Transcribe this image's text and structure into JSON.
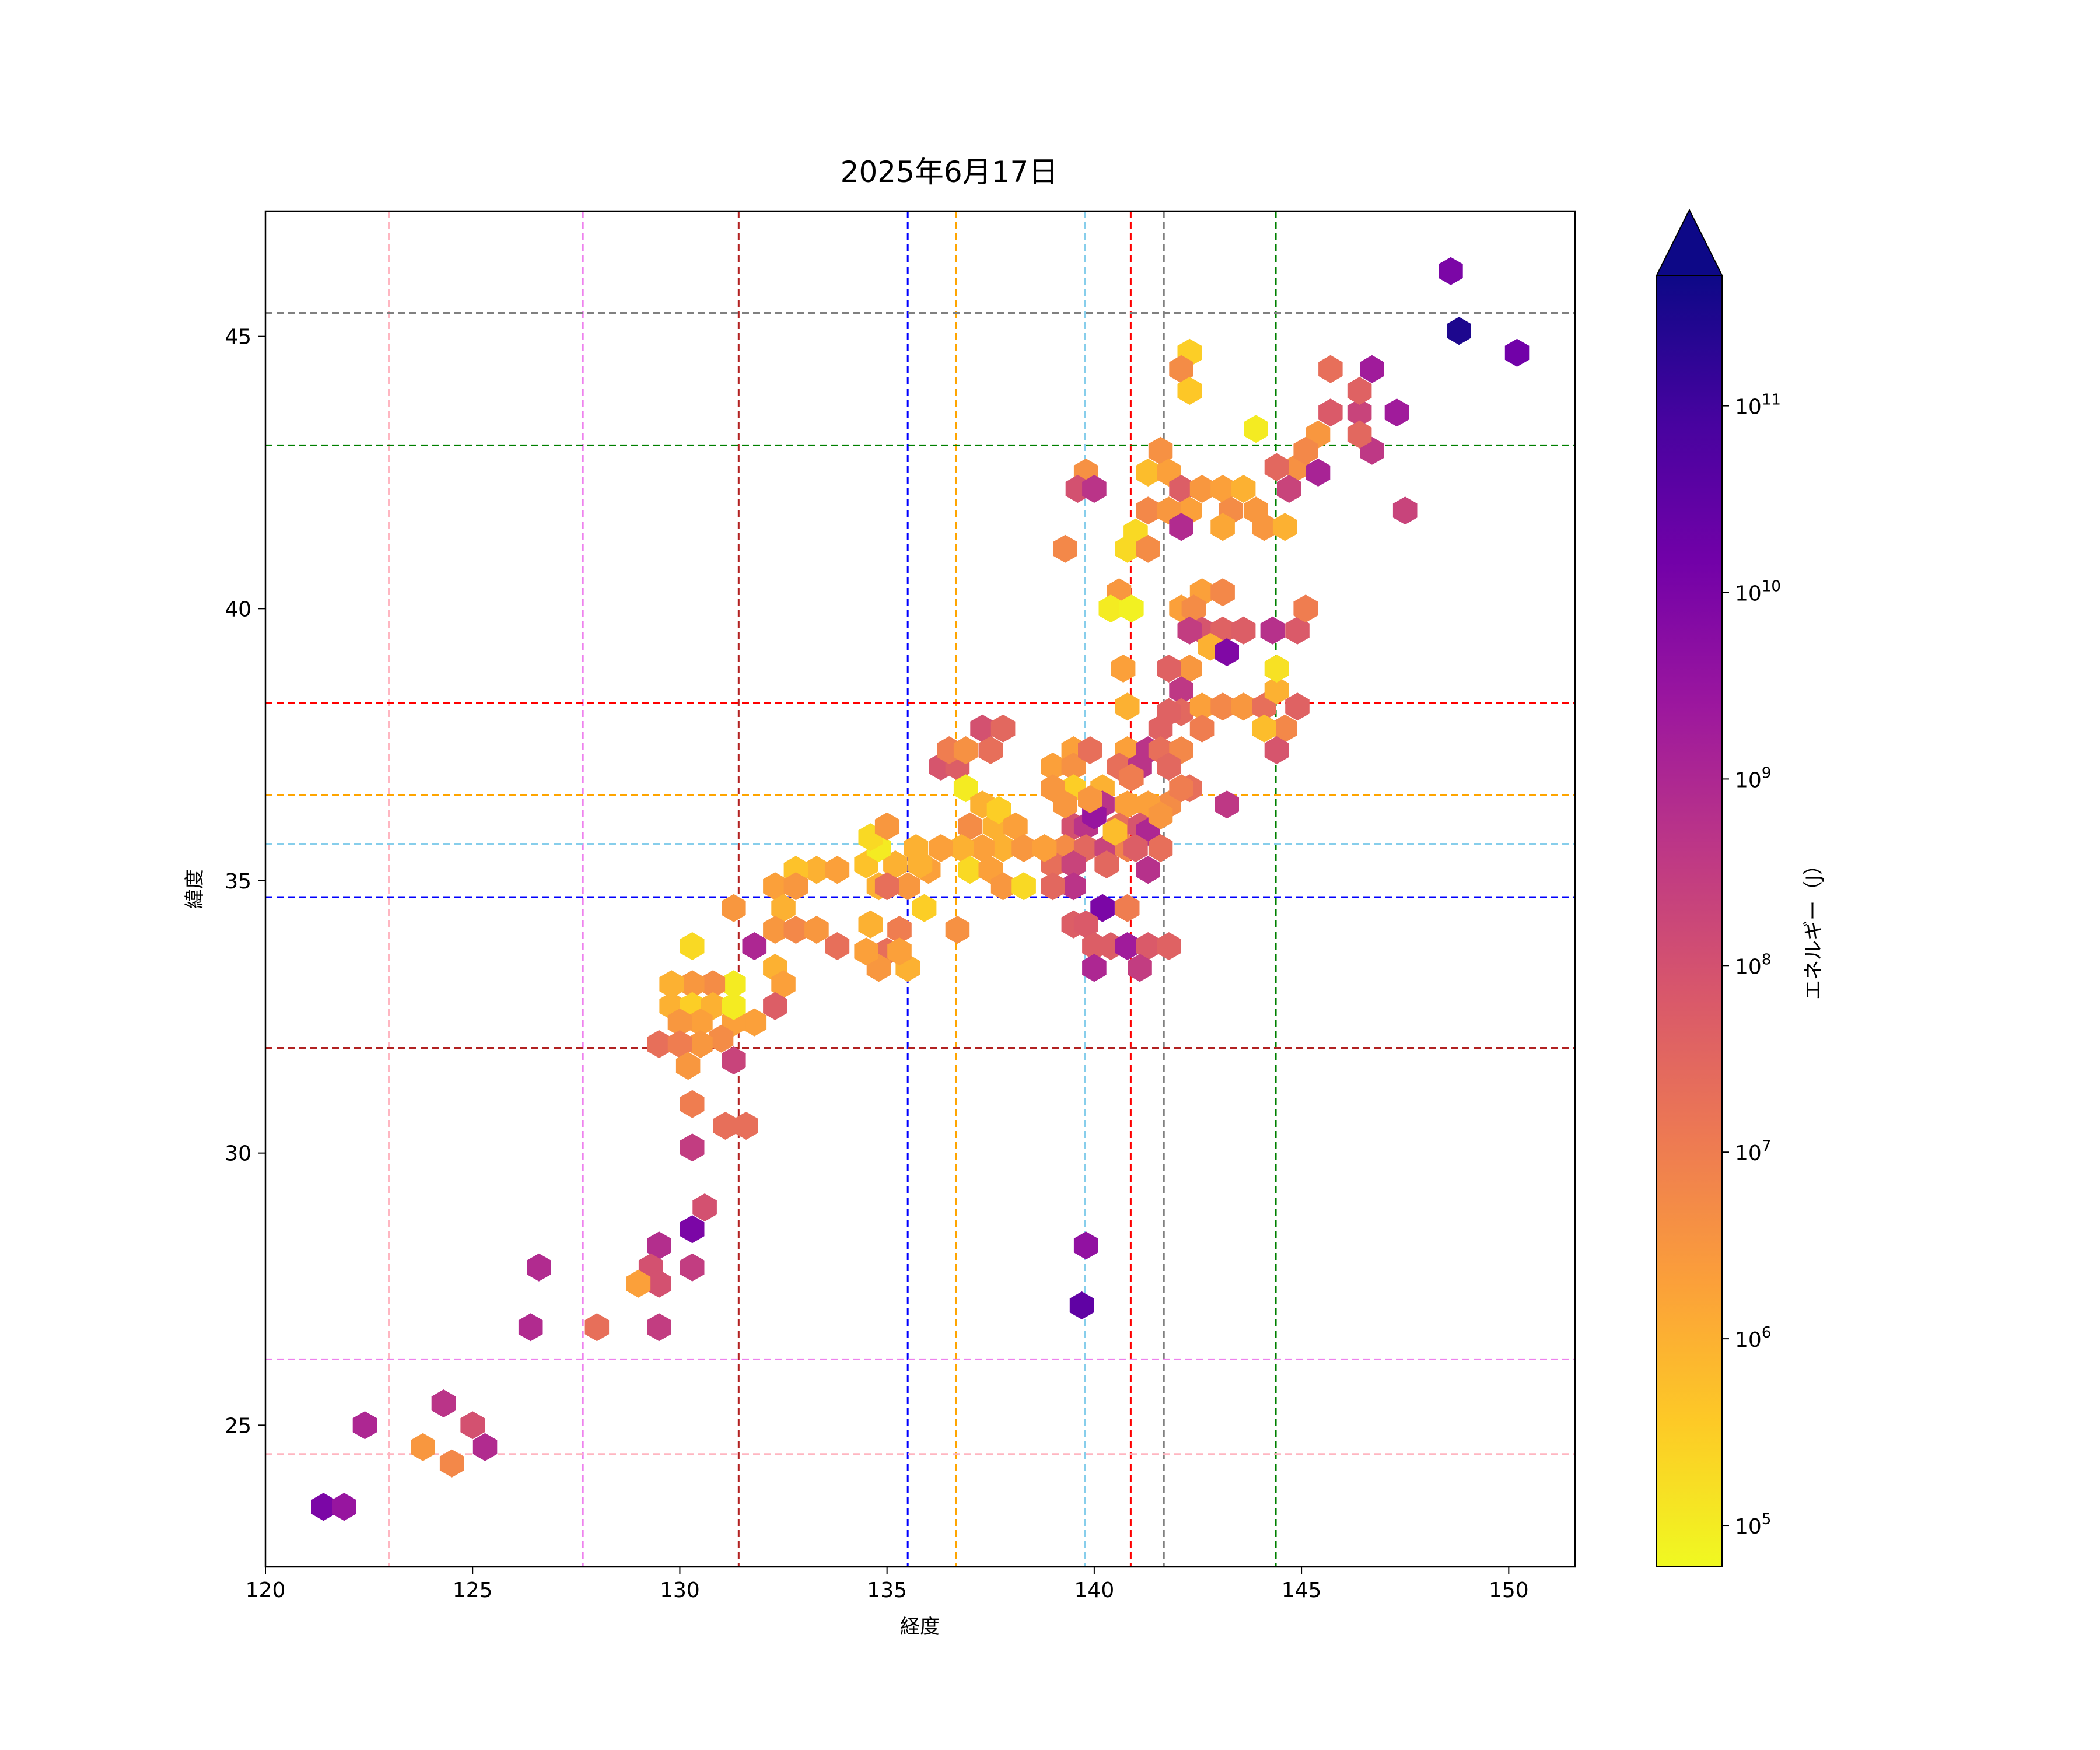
{
  "chart_data": {
    "type": "hexbin",
    "title": "2025年6月17日",
    "xlabel": "経度",
    "ylabel": "緯度",
    "xlim": [
      120,
      151.6
    ],
    "ylim": [
      22.4,
      47.3
    ],
    "xticks": [
      120,
      125,
      130,
      135,
      140,
      145,
      150
    ],
    "yticks": [
      25,
      30,
      35,
      40,
      45
    ],
    "grid": false,
    "colorbar": {
      "label": "エネルギー（J）",
      "scale": "log",
      "colormap": "plasma_r",
      "range": [
        60000,
        500000000000
      ],
      "extend": "max",
      "ticks": [
        {
          "value": 100000,
          "base": "10",
          "exp": "5"
        },
        {
          "value": 1000000,
          "base": "10",
          "exp": "6"
        },
        {
          "value": 10000000,
          "base": "10",
          "exp": "7"
        },
        {
          "value": 100000000,
          "base": "10",
          "exp": "8"
        },
        {
          "value": 1000000000,
          "base": "10",
          "exp": "9"
        },
        {
          "value": 10000000000,
          "base": "10",
          "exp": "10"
        },
        {
          "value": 100000000000,
          "base": "10",
          "exp": "11"
        }
      ]
    },
    "reference_lines": {
      "vertical": [
        {
          "x": 122.99,
          "color": "#ffb6c1"
        },
        {
          "x": 127.66,
          "color": "#ee82ee"
        },
        {
          "x": 131.42,
          "color": "#b22222"
        },
        {
          "x": 135.5,
          "color": "#0000ff"
        },
        {
          "x": 136.67,
          "color": "#ffa500"
        },
        {
          "x": 139.77,
          "color": "#87ceeb"
        },
        {
          "x": 140.88,
          "color": "#ff0000"
        },
        {
          "x": 141.68,
          "color": "#808080"
        },
        {
          "x": 144.38,
          "color": "#008000"
        }
      ],
      "horizontal": [
        {
          "y": 45.43,
          "color": "#808080"
        },
        {
          "y": 43.0,
          "color": "#008000"
        },
        {
          "y": 38.27,
          "color": "#ff0000"
        },
        {
          "y": 36.58,
          "color": "#ffa500"
        },
        {
          "y": 35.68,
          "color": "#87ceeb"
        },
        {
          "y": 34.7,
          "color": "#0000ff"
        },
        {
          "y": 31.93,
          "color": "#b22222"
        },
        {
          "y": 26.21,
          "color": "#ee82ee"
        },
        {
          "y": 24.47,
          "color": "#ffb6c1"
        }
      ]
    },
    "cells": [
      [
        148.6,
        46.2,
        10000000000.0
      ],
      [
        148.8,
        45.1,
        300000000000.0
      ],
      [
        150.2,
        44.7,
        15000000000.0
      ],
      [
        146.7,
        44.4,
        2000000000.0
      ],
      [
        145.7,
        44.4,
        20000000.0
      ],
      [
        147.3,
        43.6,
        2000000000.0
      ],
      [
        146.4,
        43.6,
        200000000.0
      ],
      [
        145.7,
        43.6,
        60000000.0
      ],
      [
        146.4,
        44.0,
        40000000.0
      ],
      [
        146.7,
        42.9,
        400000000.0
      ],
      [
        145.4,
        43.2,
        3000000.0
      ],
      [
        146.4,
        43.2,
        30000000.0
      ],
      [
        147.5,
        41.8,
        200000000.0
      ],
      [
        144.9,
        42.6,
        4000000.0
      ],
      [
        144.4,
        42.6,
        30000000.0
      ],
      [
        145.1,
        42.9,
        6000000.0
      ],
      [
        145.4,
        42.5,
        1300000000.0
      ],
      [
        144.7,
        42.2,
        200000000.0
      ],
      [
        143.9,
        43.3,
        100000.0
      ],
      [
        142.3,
        44.7,
        300000.0
      ],
      [
        142.1,
        44.4,
        5000000.0
      ],
      [
        142.3,
        44.0,
        400000.0
      ],
      [
        141.6,
        42.9,
        4000000.0
      ],
      [
        141.3,
        42.5,
        600000.0
      ],
      [
        141.8,
        42.5,
        2000000.0
      ],
      [
        142.1,
        42.2,
        50000000.0
      ],
      [
        142.6,
        42.2,
        3000000.0
      ],
      [
        143.1,
        42.2,
        2000000.0
      ],
      [
        143.6,
        42.2,
        1000000.0
      ],
      [
        142.3,
        41.8,
        2000000.0
      ],
      [
        141.3,
        41.8,
        6000000.0
      ],
      [
        141.8,
        41.8,
        3000000.0
      ],
      [
        143.3,
        41.8,
        5000000.0
      ],
      [
        143.9,
        41.8,
        3000000.0
      ],
      [
        142.1,
        41.5,
        800000000.0
      ],
      [
        143.1,
        41.5,
        1500000.0
      ],
      [
        144.1,
        41.5,
        3000000.0
      ],
      [
        144.6,
        41.5,
        1000000.0
      ],
      [
        141.0,
        41.4,
        200000.0
      ],
      [
        140.8,
        41.1,
        200000.0
      ],
      [
        141.3,
        41.1,
        5000000.0
      ],
      [
        139.3,
        41.1,
        6000000.0
      ],
      [
        139.8,
        42.5,
        4000000.0
      ],
      [
        139.6,
        42.2,
        100000000.0
      ],
      [
        140.0,
        42.2,
        500000000.0
      ],
      [
        140.6,
        40.3,
        3000000.0
      ],
      [
        140.4,
        40.0,
        100000.0
      ],
      [
        140.9,
        40.0,
        80000.0
      ],
      [
        142.1,
        40.0,
        2000000.0
      ],
      [
        142.6,
        40.3,
        2000000.0
      ],
      [
        143.1,
        40.3,
        6000000.0
      ],
      [
        142.4,
        40.0,
        5000000.0
      ],
      [
        142.6,
        39.6,
        80000000.0
      ],
      [
        142.3,
        39.6,
        300000000.0
      ],
      [
        143.1,
        39.6,
        40000000.0
      ],
      [
        143.6,
        39.6,
        50000000.0
      ],
      [
        142.8,
        39.3,
        1000000.0
      ],
      [
        143.2,
        39.2,
        8000000000.0
      ],
      [
        142.3,
        38.9,
        3000000.0
      ],
      [
        141.8,
        38.9,
        40000000.0
      ],
      [
        140.7,
        38.9,
        2000000.0
      ],
      [
        142.1,
        38.5,
        400000000.0
      ],
      [
        140.8,
        38.2,
        1000000.0
      ],
      [
        142.1,
        38.1,
        30000000.0
      ],
      [
        142.6,
        38.2,
        2000000.0
      ],
      [
        143.1,
        38.2,
        6000000.0
      ],
      [
        143.6,
        38.2,
        3000000.0
      ],
      [
        144.1,
        38.2,
        20000000.0
      ],
      [
        144.4,
        38.5,
        1000000.0
      ],
      [
        144.4,
        38.9,
        150000.0
      ],
      [
        144.3,
        39.6,
        600000000.0
      ],
      [
        144.9,
        39.6,
        60000000.0
      ],
      [
        145.1,
        40.0,
        10000000.0
      ],
      [
        144.9,
        38.2,
        40000000.0
      ],
      [
        144.6,
        37.8,
        6000000.0
      ],
      [
        144.1,
        37.8,
        600000.0
      ],
      [
        144.4,
        37.4,
        80000000.0
      ],
      [
        137.3,
        37.8,
        100000000.0
      ],
      [
        137.8,
        37.8,
        30000000.0
      ],
      [
        136.3,
        37.1,
        80000000.0
      ],
      [
        136.7,
        37.1,
        50000000.0
      ],
      [
        136.5,
        37.4,
        10000000.0
      ],
      [
        136.9,
        37.4,
        4000000.0
      ],
      [
        137.5,
        37.4,
        20000000.0
      ],
      [
        136.9,
        36.7,
        100000.0
      ],
      [
        137.3,
        36.4,
        1000000.0
      ],
      [
        137.6,
        36.0,
        1000000.0
      ],
      [
        137.0,
        36.0,
        5000000.0
      ],
      [
        137.7,
        36.3,
        300000.0
      ],
      [
        138.1,
        36.0,
        2000000.0
      ],
      [
        137.8,
        35.6,
        1000000.0
      ],
      [
        137.3,
        35.6,
        2000000.0
      ],
      [
        136.8,
        35.6,
        1000000.0
      ],
      [
        136.3,
        35.6,
        2000000.0
      ],
      [
        135.7,
        35.6,
        1000000.0
      ],
      [
        135.2,
        35.3,
        1000000.0
      ],
      [
        136.0,
        35.2,
        2000000.0
      ],
      [
        137.0,
        35.2,
        200000.0
      ],
      [
        137.5,
        35.2,
        2000000.0
      ],
      [
        137.8,
        34.9,
        3000000.0
      ],
      [
        138.3,
        34.9,
        200000.0
      ],
      [
        135.9,
        34.5,
        300000.0
      ],
      [
        135.5,
        34.9,
        3000000.0
      ],
      [
        134.8,
        34.9,
        1000000.0
      ],
      [
        134.5,
        35.3,
        500000.0
      ],
      [
        135.0,
        34.9,
        20000000.0
      ],
      [
        135.8,
        35.3,
        1000000.0
      ],
      [
        134.8,
        35.6,
        100000.0
      ],
      [
        134.6,
        35.8,
        200000.0
      ],
      [
        135.0,
        36.0,
        3000000.0
      ],
      [
        136.7,
        34.1,
        4000000.0
      ],
      [
        135.3,
        34.1,
        10000000.0
      ],
      [
        135.0,
        33.7,
        20000000.0
      ],
      [
        134.8,
        33.4,
        3000000.0
      ],
      [
        135.5,
        33.4,
        1000000.0
      ],
      [
        134.5,
        33.7,
        2000000.0
      ],
      [
        135.3,
        33.7,
        2000000.0
      ],
      [
        134.6,
        34.2,
        1000000.0
      ],
      [
        139.5,
        37.4,
        2000000.0
      ],
      [
        139.0,
        37.1,
        2000000.0
      ],
      [
        139.5,
        37.1,
        4000000.0
      ],
      [
        139.9,
        37.4,
        20000000.0
      ],
      [
        139.5,
        36.7,
        300000.0
      ],
      [
        140.2,
        36.7,
        1000000.0
      ],
      [
        139.0,
        36.7,
        3000000.0
      ],
      [
        140.8,
        37.4,
        2000000.0
      ],
      [
        140.6,
        37.1,
        20000000.0
      ],
      [
        141.1,
        37.1,
        500000000.0
      ],
      [
        141.3,
        37.4,
        500000000.0
      ],
      [
        141.6,
        37.8,
        40000000.0
      ],
      [
        141.6,
        37.4,
        20000000.0
      ],
      [
        142.1,
        37.4,
        6000000.0
      ],
      [
        142.3,
        36.7,
        20000000.0
      ],
      [
        141.8,
        36.4,
        5000000.0
      ],
      [
        141.3,
        36.4,
        2000000.0
      ],
      [
        140.8,
        36.4,
        2000000.0
      ],
      [
        140.2,
        36.4,
        500000000.0
      ],
      [
        140.6,
        36.0,
        20000000.0
      ],
      [
        141.1,
        36.0,
        80000000.0
      ],
      [
        141.3,
        35.9,
        1000000000.0
      ],
      [
        139.5,
        36.0,
        100000000.0
      ],
      [
        139.8,
        36.0,
        500000000.0
      ],
      [
        140.0,
        36.2,
        3000000000.0
      ],
      [
        139.3,
        35.6,
        5000000.0
      ],
      [
        139.8,
        35.6,
        30000000.0
      ],
      [
        140.3,
        35.6,
        200000000.0
      ],
      [
        140.8,
        35.6,
        8000000.0
      ],
      [
        139.0,
        35.3,
        20000000.0
      ],
      [
        139.5,
        35.3,
        200000000.0
      ],
      [
        140.3,
        35.3,
        30000000.0
      ],
      [
        141.0,
        35.6,
        50000000.0
      ],
      [
        141.3,
        35.2,
        600000000.0
      ],
      [
        139.5,
        34.9,
        500000000.0
      ],
      [
        139.0,
        34.9,
        30000000.0
      ],
      [
        140.2,
        34.5,
        10000000000.0
      ],
      [
        140.8,
        34.5,
        10000000.0
      ],
      [
        139.5,
        34.2,
        50000000.0
      ],
      [
        139.8,
        34.2,
        60000000.0
      ],
      [
        140.0,
        33.8,
        50000000.0
      ],
      [
        140.4,
        33.8,
        50000000.0
      ],
      [
        140.8,
        33.8,
        2000000000.0
      ],
      [
        141.3,
        33.8,
        60000000.0
      ],
      [
        140.0,
        33.4,
        1000000000.0
      ],
      [
        141.1,
        33.4,
        300000000.0
      ],
      [
        141.8,
        33.8,
        40000000.0
      ],
      [
        142.1,
        36.7,
        10000000.0
      ],
      [
        141.6,
        36.2,
        3000000.0
      ],
      [
        140.9,
        36.9,
        10000000.0
      ],
      [
        141.8,
        38.1,
        40000000.0
      ],
      [
        141.8,
        37.1,
        30000000.0
      ],
      [
        139.9,
        36.5,
        3000000.0
      ],
      [
        142.6,
        37.8,
        10000000.0
      ],
      [
        143.2,
        36.4,
        400000000.0
      ],
      [
        140.5,
        35.9,
        600000.0
      ],
      [
        141.6,
        35.6,
        20000000.0
      ],
      [
        138.3,
        35.6,
        3000000.0
      ],
      [
        138.8,
        35.6,
        2000000.0
      ],
      [
        139.3,
        36.4,
        3000000.0
      ],
      [
        133.3,
        35.2,
        1000000.0
      ],
      [
        132.8,
        35.2,
        500000.0
      ],
      [
        133.8,
        35.2,
        2000000.0
      ],
      [
        132.3,
        34.9,
        2000000.0
      ],
      [
        132.8,
        34.9,
        3000000.0
      ],
      [
        131.3,
        34.5,
        3000000.0
      ],
      [
        132.5,
        34.5,
        1000000.0
      ],
      [
        132.3,
        34.1,
        3000000.0
      ],
      [
        132.8,
        34.1,
        6000000.0
      ],
      [
        133.3,
        34.1,
        3000000.0
      ],
      [
        133.8,
        33.8,
        20000000.0
      ],
      [
        131.8,
        33.8,
        1000000000.0
      ],
      [
        130.3,
        33.8,
        200000.0
      ],
      [
        132.3,
        33.4,
        1000000.0
      ],
      [
        132.5,
        33.1,
        2000000.0
      ],
      [
        132.3,
        32.7,
        50000000.0
      ],
      [
        131.8,
        32.4,
        2000000.0
      ],
      [
        131.3,
        32.4,
        2000000.0
      ],
      [
        131.3,
        33.1,
        100000.0
      ],
      [
        130.8,
        33.1,
        5000000.0
      ],
      [
        130.3,
        33.1,
        3000000.0
      ],
      [
        129.8,
        33.1,
        1000000.0
      ],
      [
        129.8,
        32.7,
        1000000.0
      ],
      [
        130.3,
        32.7,
        300000.0
      ],
      [
        130.8,
        32.7,
        1000000.0
      ],
      [
        131.3,
        32.7,
        100000.0
      ],
      [
        130.5,
        32.4,
        2000000.0
      ],
      [
        130.0,
        32.4,
        3000000.0
      ],
      [
        131.0,
        32.1,
        5000000.0
      ],
      [
        130.5,
        32.0,
        3000000.0
      ],
      [
        129.5,
        32.0,
        20000000.0
      ],
      [
        130.0,
        32.0,
        10000000.0
      ],
      [
        131.3,
        31.7,
        200000000.0
      ],
      [
        130.2,
        31.6,
        3000000.0
      ],
      [
        130.3,
        30.9,
        10000000.0
      ],
      [
        131.1,
        30.5,
        20000000.0
      ],
      [
        131.6,
        30.5,
        20000000.0
      ],
      [
        130.3,
        30.1,
        300000000.0
      ],
      [
        130.6,
        29.0,
        100000000.0
      ],
      [
        130.3,
        28.6,
        10000000000.0
      ],
      [
        129.5,
        28.3,
        700000000.0
      ],
      [
        129.3,
        27.9,
        100000000.0
      ],
      [
        130.3,
        27.9,
        300000000.0
      ],
      [
        129.5,
        27.6,
        100000000.0
      ],
      [
        129.0,
        27.6,
        2000000.0
      ],
      [
        126.6,
        27.9,
        800000000.0
      ],
      [
        126.4,
        26.8,
        800000000.0
      ],
      [
        128.0,
        26.8,
        20000000.0
      ],
      [
        129.5,
        26.8,
        300000000.0
      ],
      [
        122.4,
        25.0,
        1000000000.0
      ],
      [
        124.3,
        25.4,
        500000000.0
      ],
      [
        123.8,
        24.6,
        3000000.0
      ],
      [
        124.5,
        24.3,
        6000000.0
      ],
      [
        125.0,
        25.0,
        100000000.0
      ],
      [
        125.3,
        24.6,
        800000000.0
      ],
      [
        121.4,
        23.5,
        10000000000.0
      ],
      [
        121.9,
        23.5,
        3000000000.0
      ],
      [
        139.8,
        28.3,
        4000000000.0
      ],
      [
        139.7,
        27.2,
        30000000000.0
      ]
    ]
  }
}
